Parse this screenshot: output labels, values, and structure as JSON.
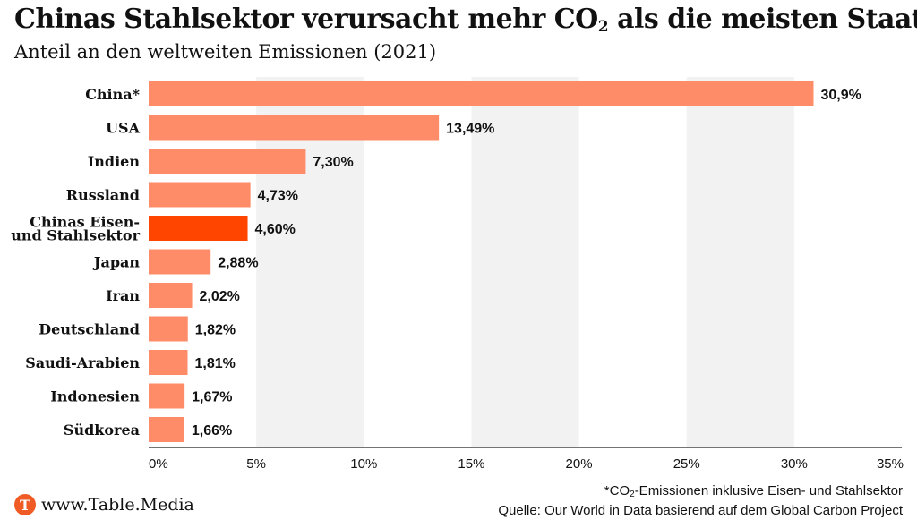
{
  "title": {
    "before": "Chinas Stahlsektor verursacht mehr CO",
    "sub": "2",
    "after": " als die meisten Staaten"
  },
  "subtitle": "Anteil an den weltweiten Emissionen (2021)",
  "chart_data": {
    "type": "bar",
    "orientation": "horizontal",
    "categories": [
      "China*",
      "USA",
      "Indien",
      "Russland",
      "Chinas Eisen-\nund Stahlsektor",
      "Japan",
      "Iran",
      "Deutschland",
      "Saudi-Arabien",
      "Indonesien",
      "Südkorea"
    ],
    "values": [
      30.9,
      13.49,
      7.3,
      4.73,
      4.6,
      2.88,
      2.02,
      1.82,
      1.81,
      1.67,
      1.66
    ],
    "value_labels": [
      "30,9%",
      "13,49%",
      "7,30%",
      "4,73%",
      "4,60%",
      "2,88%",
      "2,02%",
      "1,82%",
      "1,81%",
      "1,67%",
      "1,66%"
    ],
    "highlight_index": 4,
    "xlim": [
      0,
      35
    ],
    "xticks": [
      0,
      5,
      10,
      15,
      20,
      25,
      30,
      35
    ],
    "xtick_labels": [
      "0%",
      "5%",
      "10%",
      "15%",
      "20%",
      "25%",
      "30%",
      "35%"
    ],
    "grid": "alternating vertical bands",
    "colors": {
      "bar": "#ff8c69",
      "highlight": "#ff4500",
      "band": "#f2f2f2"
    }
  },
  "footer": {
    "logo_letter": "T",
    "site": "www.Table.Media",
    "note_before": "*CO",
    "note_sub": "2",
    "note_after": "-Emissionen inklusive Eisen- und Stahlsektor",
    "source": "Quelle: Our World in Data basierend auf dem Global Carbon Project"
  }
}
